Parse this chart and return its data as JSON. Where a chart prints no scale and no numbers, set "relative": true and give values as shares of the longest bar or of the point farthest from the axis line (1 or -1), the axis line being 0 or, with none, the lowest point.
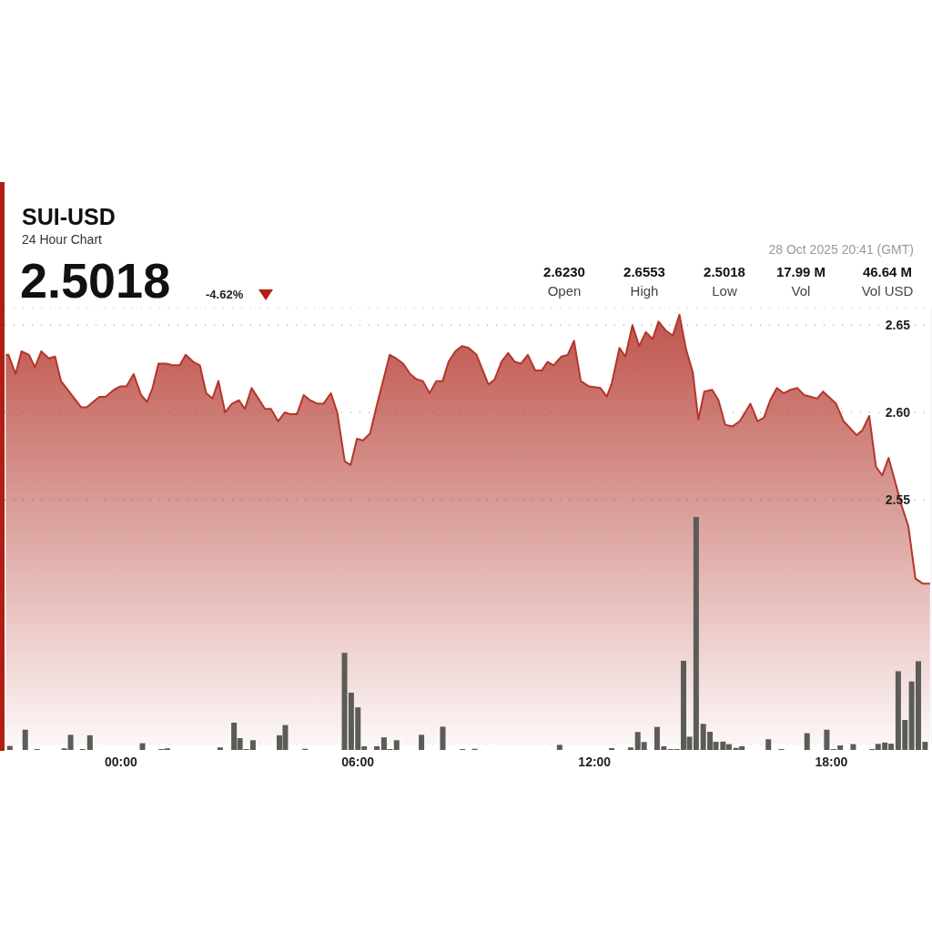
{
  "chart_data": [
    {
      "type": "area",
      "title": "SUI-USD",
      "subtitle": "24 Hour Chart",
      "annotations": [
        "2.5018",
        "-4.62%",
        "2.6230",
        "Open",
        "2.6553",
        "High",
        "2.5018",
        "Low",
        "17.99 M",
        "Vol",
        "46.64 M",
        "Vol USD",
        "28 Oct 2025 20:41 (GMT)"
      ],
      "color": "#b3362c",
      "x": [
        -2.92,
        -2.85,
        -2.67,
        -2.52,
        -2.33,
        -2.18,
        -2.02,
        -1.83,
        -1.67,
        -1.52,
        -1.01,
        -0.87,
        -0.55,
        -0.39,
        -0.18,
        -0.01,
        0.14,
        0.32,
        0.51,
        0.66,
        0.8,
        0.95,
        1.14,
        1.33,
        1.49,
        1.64,
        1.83,
        2.0,
        2.16,
        2.32,
        2.47,
        2.64,
        2.81,
        2.99,
        3.14,
        3.31,
        3.48,
        3.65,
        3.8,
        3.98,
        4.15,
        4.3,
        4.46,
        4.63,
        4.79,
        4.98,
        5.13,
        5.32,
        5.48,
        5.67,
        5.82,
        5.98,
        6.13,
        6.31,
        6.47,
        6.81,
        6.97,
        7.15,
        7.33,
        7.49,
        7.65,
        7.82,
        7.99,
        8.15,
        8.3,
        8.47,
        8.64,
        8.81,
        9.01,
        9.31,
        9.47,
        9.64,
        9.81,
        9.98,
        10.14,
        10.31,
        10.5,
        10.66,
        10.81,
        10.96,
        11.16,
        11.32,
        11.48,
        11.65,
        11.85,
        12.15,
        12.31,
        12.44,
        12.63,
        12.78,
        12.96,
        13.13,
        13.3,
        13.47,
        13.62,
        13.8,
        13.98,
        14.15,
        14.32,
        14.49,
        14.63,
        14.78,
        14.98,
        15.14,
        15.31,
        15.49,
        15.68,
        15.95,
        16.13,
        16.29,
        16.45,
        16.62,
        16.79,
        16.97,
        17.14,
        17.31,
        17.48,
        17.64,
        17.79,
        18.12,
        18.31,
        18.64,
        18.79,
        18.96,
        19.13,
        19.29,
        19.45,
        19.79,
        19.95,
        20.13,
        20.32,
        20.5
      ],
      "values": [
        2.633,
        2.633,
        2.622,
        2.635,
        2.633,
        2.626,
        2.635,
        2.631,
        2.632,
        2.618,
        2.603,
        2.603,
        2.609,
        2.609,
        2.613,
        2.615,
        2.615,
        2.622,
        2.61,
        2.606,
        2.614,
        2.628,
        2.628,
        2.627,
        2.627,
        2.633,
        2.629,
        2.627,
        2.611,
        2.608,
        2.618,
        2.6,
        2.605,
        2.607,
        2.602,
        2.614,
        2.608,
        2.602,
        2.602,
        2.595,
        2.6,
        2.599,
        2.599,
        2.61,
        2.607,
        2.605,
        2.605,
        2.611,
        2.6,
        2.572,
        2.57,
        2.585,
        2.584,
        2.588,
        2.603,
        2.633,
        2.631,
        2.628,
        2.622,
        2.619,
        2.618,
        2.611,
        2.618,
        2.618,
        2.629,
        2.635,
        2.638,
        2.637,
        2.633,
        2.616,
        2.619,
        2.629,
        2.634,
        2.629,
        2.628,
        2.633,
        2.624,
        2.624,
        2.629,
        2.627,
        2.632,
        2.633,
        2.641,
        2.618,
        2.615,
        2.614,
        2.609,
        2.617,
        2.637,
        2.632,
        2.65,
        2.638,
        2.646,
        2.642,
        2.652,
        2.647,
        2.644,
        2.656,
        2.636,
        2.623,
        2.596,
        2.612,
        2.613,
        2.607,
        2.593,
        2.592,
        2.595,
        2.605,
        2.595,
        2.597,
        2.607,
        2.614,
        2.611,
        2.613,
        2.614,
        2.61,
        2.609,
        2.608,
        2.612,
        2.605,
        2.595,
        2.587,
        2.59,
        2.598,
        2.569,
        2.564,
        2.574,
        2.546,
        2.535,
        2.505,
        2.502,
        2.502
      ],
      "xlim": [
        -2.95,
        20.55
      ],
      "ylim": [
        2.41,
        2.66
      ],
      "yticks": [
        {
          "value": 2.55,
          "label": "2.55"
        },
        {
          "value": 2.6,
          "label": "2.60"
        },
        {
          "value": 2.65,
          "label": "2.65"
        }
      ],
      "grid": "y",
      "tick_labels": "y"
    },
    {
      "type": "bar",
      "relative": true,
      "color": "#5b5c57",
      "x": [
        -2.81,
        -2.42,
        -2.12,
        -1.43,
        -1.27,
        -0.97,
        -0.78,
        0.55,
        1.03,
        1.18,
        2.52,
        2.87,
        3.02,
        3.18,
        3.35,
        4.02,
        4.17,
        4.67,
        5.67,
        5.84,
        6.01,
        6.17,
        6.49,
        6.67,
        6.82,
        6.99,
        7.62,
        8.16,
        8.66,
        8.97,
        11.12,
        12.44,
        12.92,
        13.1,
        13.26,
        13.59,
        13.76,
        13.93,
        14.09,
        14.26,
        14.41,
        14.58,
        14.76,
        14.93,
        15.08,
        15.26,
        15.41,
        15.59,
        15.74,
        16.41,
        16.74,
        17.39,
        17.89,
        18.06,
        18.23,
        18.56,
        19.04,
        19.19,
        19.36,
        19.52,
        19.7,
        19.87,
        20.04,
        20.21,
        20.38
      ],
      "values": [
        0.018,
        0.087,
        0.004,
        0.007,
        0.065,
        0.004,
        0.063,
        0.029,
        0.004,
        0.007,
        0.011,
        0.117,
        0.051,
        0.004,
        0.042,
        0.063,
        0.107,
        0.005,
        0.417,
        0.246,
        0.183,
        0.016,
        0.016,
        0.054,
        0.004,
        0.042,
        0.065,
        0.1,
        0.004,
        0.005,
        0.022,
        0.008,
        0.011,
        0.077,
        0.034,
        0.099,
        0.016,
        0.004,
        0.004,
        0.383,
        0.057,
        1,
        0.112,
        0.078,
        0.035,
        0.036,
        0.025,
        0.009,
        0.016,
        0.046,
        0.004,
        0.072,
        0.087,
        0.004,
        0.02,
        0.025,
        0.004,
        0.026,
        0.032,
        0.027,
        0.338,
        0.129,
        0.294,
        0.381,
        0.035
      ],
      "xlim": [
        -2.95,
        20.55
      ],
      "xticks": [
        {
          "value": 0,
          "label": "00:00"
        },
        {
          "value": 6,
          "label": "06:00"
        },
        {
          "value": 12,
          "label": "12:00"
        },
        {
          "value": 18,
          "label": "18:00"
        }
      ],
      "tick_labels": "x"
    }
  ]
}
